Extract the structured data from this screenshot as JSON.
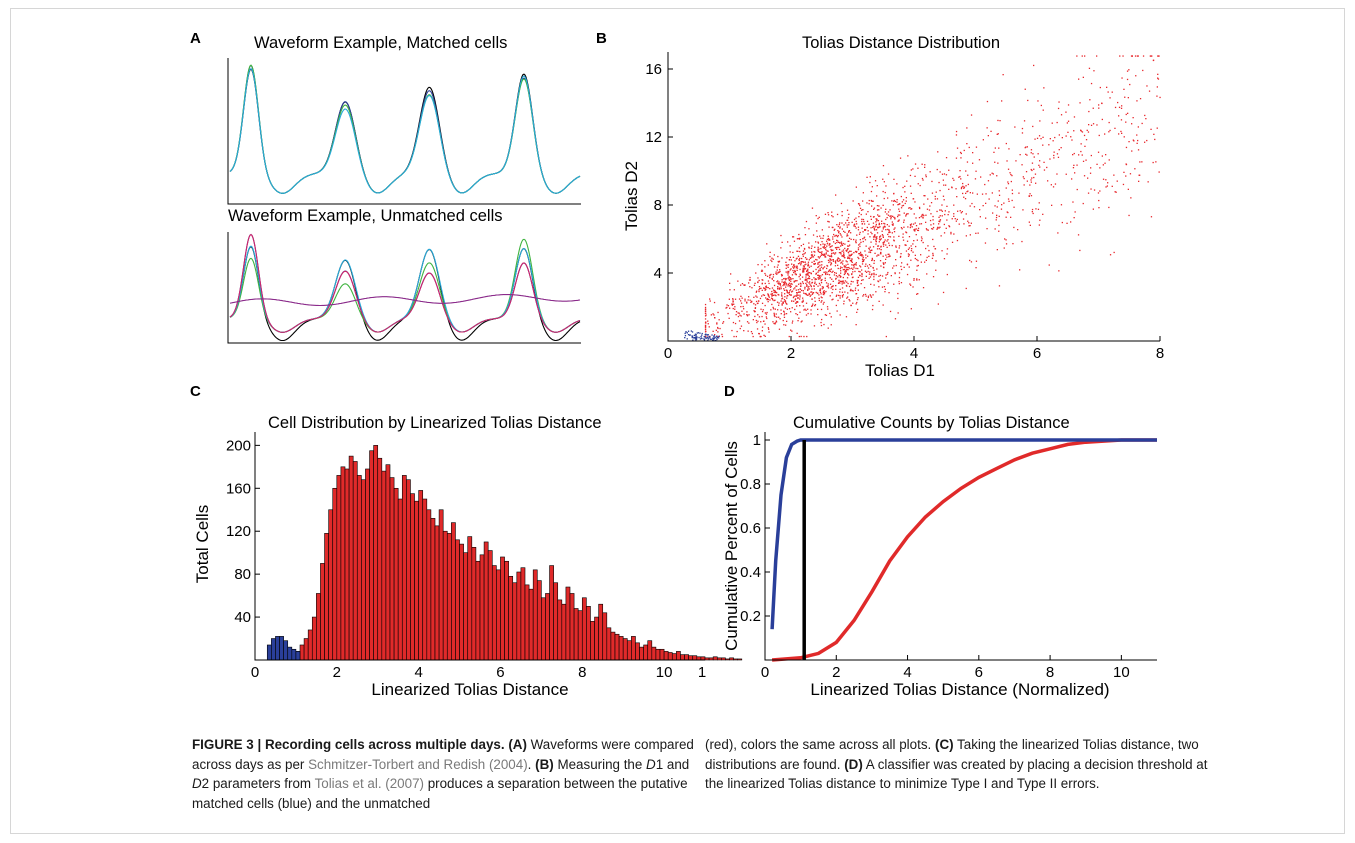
{
  "panels": {
    "A": {
      "letter": "A",
      "top_title": "Waveform Example, Matched cells",
      "bottom_title": "Waveform Example, Unmatched cells",
      "matched_colors": [
        "#000000",
        "#2a3f9a",
        "#3fb33f",
        "#27a9d9"
      ],
      "unmatched_colors": [
        "#000000",
        "#2a3f9a",
        "#3fb33f",
        "#27a9d9",
        "#d1246a",
        "#8a2a8a"
      ]
    },
    "B": {
      "letter": "B",
      "chart_data": {
        "type": "scatter",
        "title": "Tolias Distance Distribution",
        "xlabel": "Tolias D1",
        "ylabel": "Tolias D2",
        "xlim": [
          0,
          8
        ],
        "ylim": [
          0,
          17
        ],
        "xticks": [
          "0",
          "2",
          "4",
          "6",
          "8"
        ],
        "yticks": [
          "4",
          "8",
          "12",
          "16"
        ],
        "series": [
          {
            "color": "#e8262b",
            "x_range": [
              0.6,
              8
            ],
            "y_range": [
              0.3,
              16.8
            ]
          },
          {
            "color": "#2a3f9a",
            "x_range": [
              0.25,
              0.85
            ],
            "y_range": [
              0.05,
              0.7
            ]
          }
        ]
      }
    },
    "C": {
      "letter": "C",
      "chart_data": {
        "type": "bar",
        "title": "Cell Distribution by Linearized Tolias Distance",
        "xlabel": "Linearized Tolias Distance",
        "ylabel": "Total Cells",
        "xlim": [
          0,
          11
        ],
        "ylim": [
          0,
          205
        ],
        "xticks": [
          "0",
          "2",
          "4",
          "6",
          "8",
          "10",
          "1"
        ],
        "yticks": [
          "40",
          "80",
          "120",
          "160",
          "200"
        ],
        "bin_width": 0.1,
        "blue_series": {
          "color": "#2a3f9a",
          "start": 0.3,
          "values": [
            14,
            20,
            22,
            22,
            18,
            12,
            10,
            8
          ]
        },
        "red_series": {
          "color": "#e02a2a",
          "start": 0.9,
          "values": [
            5,
            8,
            14,
            20,
            28,
            40,
            62,
            90,
            118,
            140,
            160,
            172,
            180,
            178,
            190,
            185,
            172,
            168,
            178,
            195,
            200,
            188,
            176,
            182,
            170,
            160,
            150,
            172,
            168,
            155,
            148,
            158,
            150,
            140,
            132,
            125,
            140,
            120,
            118,
            128,
            112,
            108,
            100,
            115,
            105,
            92,
            98,
            110,
            102,
            88,
            84,
            96,
            92,
            78,
            72,
            82,
            86,
            70,
            66,
            84,
            74,
            58,
            62,
            88,
            72,
            56,
            52,
            68,
            62,
            48,
            46,
            58,
            50,
            36,
            40,
            52,
            44,
            30,
            26,
            24,
            22,
            20,
            18,
            22,
            16,
            12,
            14,
            18,
            12,
            10,
            10,
            8,
            7,
            6,
            8,
            5,
            5,
            4,
            4,
            3,
            3,
            2,
            2,
            3,
            2,
            2,
            1,
            2,
            1,
            1
          ]
        }
      }
    },
    "D": {
      "letter": "D",
      "chart_data": {
        "type": "line",
        "title": "Cumulative Counts by Tolias Distance",
        "xlabel": "Linearized Tolias Distance (Normalized)",
        "ylabel": "Cumulative Percent of Cells",
        "xlim": [
          0,
          11
        ],
        "ylim": [
          0,
          1.05
        ],
        "xticks": [
          "0",
          "2",
          "4",
          "6",
          "8",
          "10"
        ],
        "yticks": [
          "0.2",
          "0.4",
          "0.6",
          "0.8",
          "1"
        ],
        "threshold": 1.1,
        "threshold_color": "#000000",
        "series": [
          {
            "color": "#2a3f9a",
            "x": [
              0.2,
              0.3,
              0.45,
              0.6,
              0.75,
              0.9,
              1.0,
              1.1,
              11
            ],
            "y": [
              0.14,
              0.45,
              0.75,
              0.92,
              0.98,
              0.995,
              1.0,
              1.0,
              1.0
            ]
          },
          {
            "color": "#e02a2a",
            "x": [
              0.2,
              1.0,
              1.5,
              2.0,
              2.5,
              3.0,
              3.5,
              4.0,
              4.5,
              5.0,
              5.5,
              6.0,
              6.5,
              7.0,
              7.5,
              8.0,
              8.5,
              9.0,
              9.5,
              10.0,
              10.5,
              11.0
            ],
            "y": [
              0.0,
              0.01,
              0.03,
              0.08,
              0.18,
              0.31,
              0.45,
              0.56,
              0.65,
              0.72,
              0.78,
              0.83,
              0.87,
              0.91,
              0.94,
              0.96,
              0.98,
              0.99,
              0.995,
              1.0,
              1.0,
              1.0
            ]
          }
        ]
      }
    }
  },
  "caption": {
    "lead": "FIGURE 3 | Recording cells across multiple days.",
    "a_label": "(A)",
    "a_text": " Waveforms were compared across days as per ",
    "a_ref": "Schmitzer-Torbert and Redish (2004)",
    "a_end": ".",
    "b_label": "(B)",
    "b_text1": " Measuring the ",
    "d1": "D",
    "d1_sub": "1",
    "b_and": " and ",
    "d2": "D",
    "d2_sub": "2",
    "b_text2": " parameters from ",
    "b_ref": "Tolias et al. (2007)",
    "b_text3": " produces a separation between the putative matched cells (blue) and the unmatched (red), colors the same across all plots.",
    "c_label": "(C)",
    "c_text": " Taking the linearized Tolias distance, two distributions are found.",
    "d_label": "(D)",
    "d_text": " A classifier was created by placing a decision threshold at the linearized Tolias distance to minimize Type I and Type II errors."
  }
}
